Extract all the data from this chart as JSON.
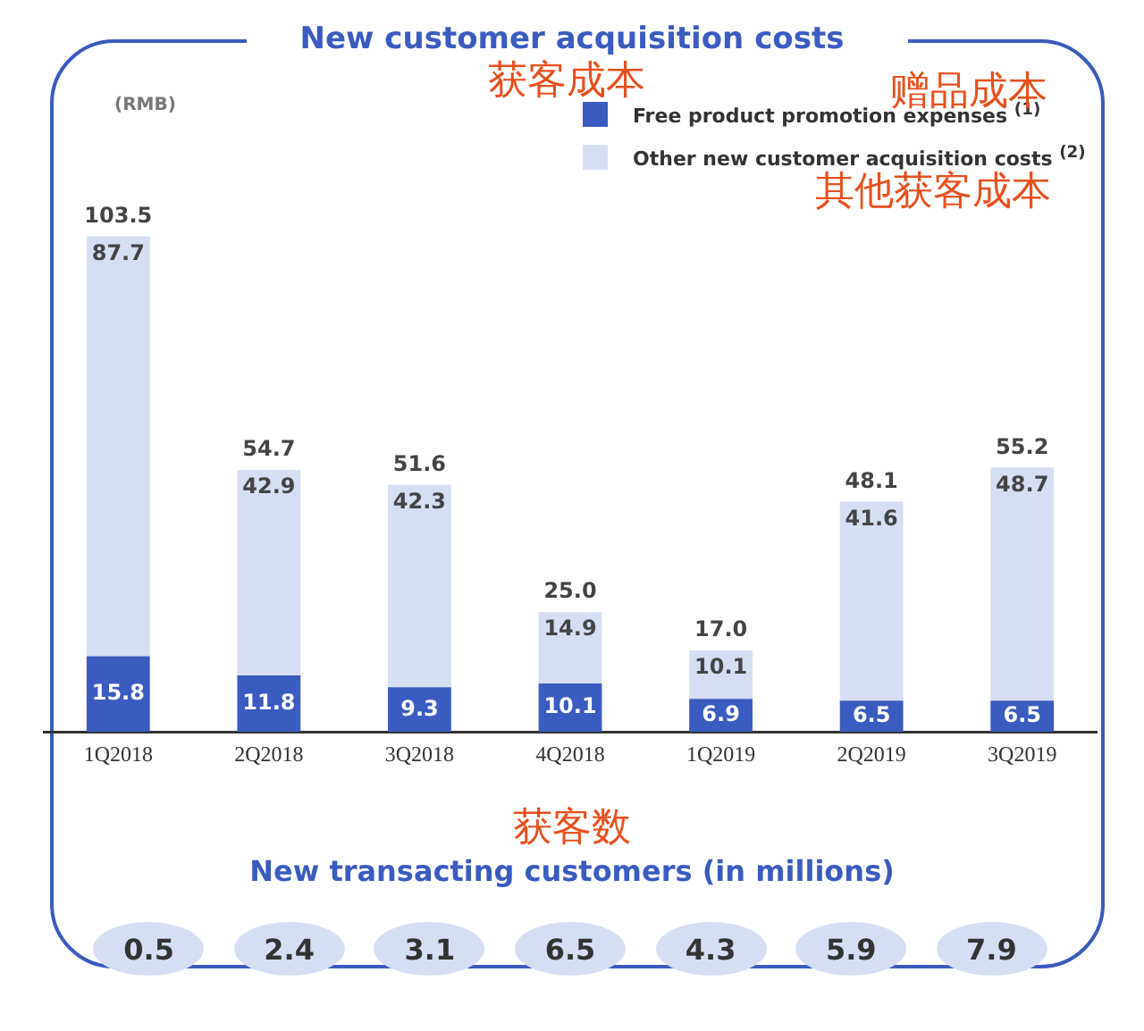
{
  "chart_data": [
    {
      "type": "bar",
      "title": "New customer acquisition costs",
      "ylabel": "(RMB)",
      "stacked": true,
      "categories": [
        "1Q2018",
        "2Q2018",
        "3Q2018",
        "4Q2018",
        "1Q2019",
        "2Q2019",
        "3Q2019"
      ],
      "series": [
        {
          "name": "Free product promotion expenses $^{(1)}$",
          "color": "#3a5bbf",
          "values": [
            15.8,
            11.8,
            9.3,
            10.1,
            6.9,
            6.5,
            6.5
          ]
        },
        {
          "name": "Other new customer acquisition costs $^{(2)}$",
          "color": "#d6def3",
          "values": [
            87.7,
            42.9,
            42.3,
            14.9,
            10.1,
            41.6,
            48.7
          ]
        }
      ],
      "data_labels": true,
      "totals": [
        "103.5",
        "54.7",
        "51.6",
        "25.0",
        "17.0",
        "48.1",
        "55.2"
      ],
      "grid": false,
      "legend": "top right",
      "tick_labels": "x",
      "annotations": [
        "获客成本",
        "赠品成本",
        "其他获客成本"
      ]
    },
    {
      "type": "other",
      "title": "New transacting customers (in millions)",
      "categories": [
        null,
        null,
        null,
        null,
        null,
        null,
        null
      ],
      "values": [
        0.5,
        2.4,
        3.1,
        6.5,
        4.3,
        5.9,
        7.9
      ],
      "data_labels": true,
      "annotations": [
        "获客数"
      ]
    }
  ]
}
